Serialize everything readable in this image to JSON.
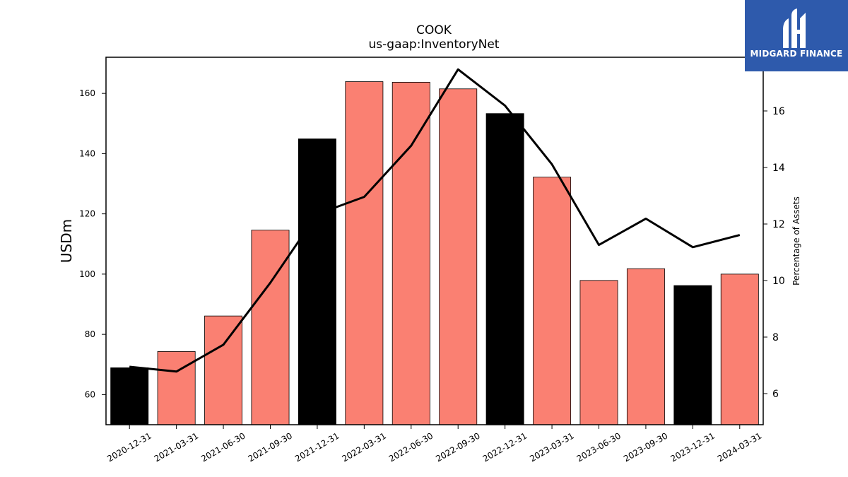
{
  "chart_data": {
    "type": "bar",
    "title": "COOK",
    "subtitle": "us-gaap:InventoryNet",
    "ylabel": "USDm",
    "y2label": "Percentage of Assets",
    "ylim": [
      50,
      172
    ],
    "y2lim": [
      4.9,
      17.9
    ],
    "yticks": [
      60,
      80,
      100,
      120,
      140,
      160
    ],
    "y2ticks": [
      6,
      8,
      10,
      12,
      14,
      16
    ],
    "grid": false,
    "categories": [
      "2020-12-31",
      "2021-03-31",
      "2021-06-30",
      "2021-09-30",
      "2021-12-31",
      "2022-03-31",
      "2022-06-30",
      "2022-09-30",
      "2022-12-31",
      "2023-03-31",
      "2023-06-30",
      "2023-09-30",
      "2023-12-31",
      "2024-03-31"
    ],
    "series": [
      {
        "type": "bar",
        "axis": "left",
        "values": [
          68.9,
          74.3,
          86.1,
          114.6,
          144.9,
          163.9,
          163.7,
          161.5,
          153.3,
          132.2,
          97.9,
          101.8,
          96.2,
          100.0
        ],
        "colors": [
          "#000000",
          "#fa8072",
          "#fa8072",
          "#fa8072",
          "#000000",
          "#fa8072",
          "#fa8072",
          "#fa8072",
          "#000000",
          "#fa8072",
          "#fa8072",
          "#fa8072",
          "#000000",
          "#fa8072"
        ]
      },
      {
        "type": "line",
        "axis": "right",
        "color": "#000000",
        "values": [
          6.95,
          6.78,
          7.73,
          9.92,
          12.35,
          12.96,
          14.77,
          17.47,
          16.19,
          14.11,
          11.26,
          12.19,
          11.18,
          11.61
        ]
      }
    ]
  },
  "logo": {
    "text": "MIDGARD FINANCE",
    "icon": "midgard-logo-icon",
    "background": "#2e5aac"
  }
}
